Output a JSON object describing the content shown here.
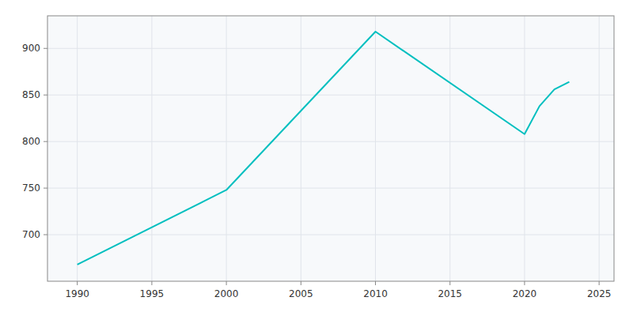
{
  "chart_data": {
    "type": "line",
    "x": [
      1990,
      2000,
      2010,
      2020,
      2021,
      2022,
      2023
    ],
    "values": [
      668,
      748,
      918,
      808,
      838,
      856,
      864
    ],
    "color": "#00BFBF",
    "xlim": [
      1988,
      2026
    ],
    "ylim": [
      650,
      935
    ],
    "xticks": [
      1990,
      1995,
      2000,
      2005,
      2010,
      2015,
      2020,
      2025
    ],
    "yticks": [
      700,
      750,
      800,
      850,
      900
    ],
    "grid": true
  }
}
